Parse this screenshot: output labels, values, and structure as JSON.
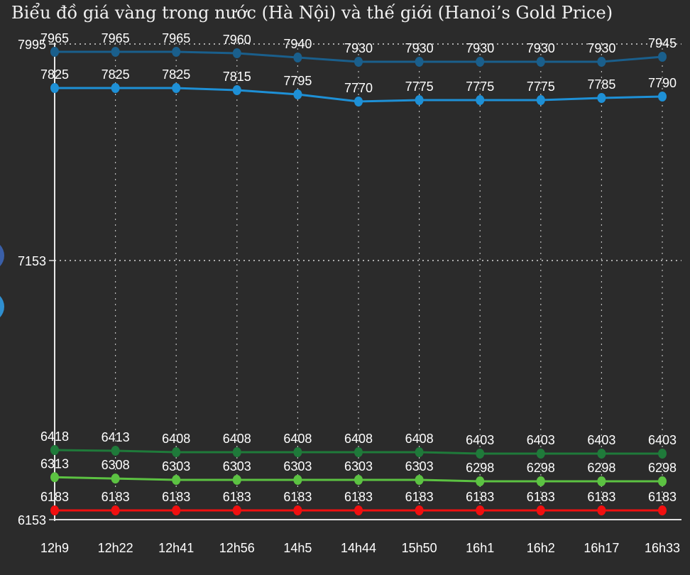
{
  "title": "Biểu đồ giá vàng trong nước (Hà Nội) và thế giới (Hanoi’s Gold Price)",
  "colors": {
    "background": "#2b2b2b",
    "side_dot_top": "#3a5fa8",
    "side_dot_bottom": "#2f8fd0"
  },
  "chart_data": {
    "type": "line",
    "title": "Biểu đồ giá vàng trong nước (Hà Nội) và thế giới (Hanoi’s Gold Price)",
    "xlabel": "",
    "ylabel": "",
    "categories": [
      "12h9",
      "12h22",
      "12h41",
      "12h56",
      "14h5",
      "14h44",
      "15h50",
      "16h1",
      "16h2",
      "16h17",
      "16h33"
    ],
    "y_ticks": [
      "7995",
      "7153",
      "6153"
    ],
    "grid": true,
    "legend": "none",
    "series": [
      {
        "color": "#1a5f8c",
        "values": [
          7965,
          7965,
          7965,
          7960,
          7940,
          7930,
          7930,
          7930,
          7930,
          7930,
          7945
        ]
      },
      {
        "color": "#1e90d6",
        "values": [
          7825,
          7825,
          7825,
          7815,
          7795,
          7770,
          7775,
          7775,
          7775,
          7785,
          7790
        ]
      },
      {
        "color": "#1f7a3a",
        "values": [
          6418,
          6413,
          6408,
          6408,
          6408,
          6408,
          6408,
          6403,
          6403,
          6403,
          6403
        ]
      },
      {
        "color": "#5cc242",
        "values": [
          6313,
          6308,
          6303,
          6303,
          6303,
          6303,
          6303,
          6298,
          6298,
          6298,
          6298
        ]
      },
      {
        "color": "#f01010",
        "values": [
          6183,
          6183,
          6183,
          6183,
          6183,
          6183,
          6183,
          6183,
          6183,
          6183,
          6183
        ]
      }
    ]
  }
}
